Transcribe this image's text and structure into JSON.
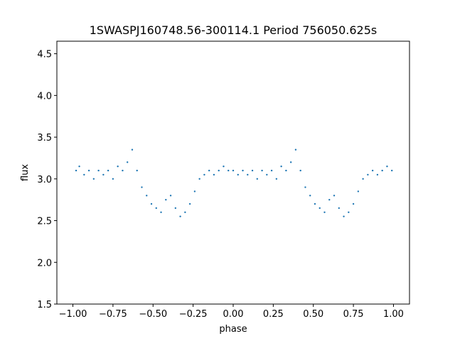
{
  "chart_data": {
    "type": "scatter",
    "title": "1SWASPJ160748.56-300114.1 Period 756050.625s",
    "xlabel": "phase",
    "ylabel": "flux",
    "xlim": [
      -1.1,
      1.1
    ],
    "ylim": [
      1.5,
      4.65
    ],
    "xticks": [
      -1.0,
      -0.75,
      -0.5,
      -0.25,
      0.0,
      0.25,
      0.5,
      0.75,
      1.0
    ],
    "xtick_labels": [
      "−1.00",
      "−0.75",
      "−0.50",
      "−0.25",
      "0.00",
      "0.25",
      "0.50",
      "0.75",
      "1.00"
    ],
    "yticks": [
      1.5,
      2.0,
      2.5,
      3.0,
      3.5,
      4.0,
      4.5
    ],
    "ytick_labels": [
      "1.5",
      "2.0",
      "2.5",
      "3.0",
      "3.5",
      "4.0",
      "4.5"
    ],
    "grid": false,
    "marker_color": "#1f77b4",
    "series": [
      {
        "x": [
          -0.98,
          -0.96,
          -0.93,
          -0.9,
          -0.87,
          -0.84,
          -0.81,
          -0.78,
          -0.75,
          -0.72,
          -0.69,
          -0.66,
          -0.63,
          -0.6,
          -0.57,
          -0.54,
          -0.51,
          -0.48,
          -0.45,
          -0.42,
          -0.39,
          -0.36,
          -0.33,
          -0.3,
          -0.27,
          -0.24,
          -0.21,
          -0.18,
          -0.15,
          -0.12,
          -0.09,
          -0.06,
          -0.03,
          0.0,
          0.03,
          0.06,
          0.09,
          0.12,
          0.15,
          0.18,
          0.21,
          0.24,
          0.27,
          0.3,
          0.33,
          0.36,
          0.39,
          0.42,
          0.45,
          0.48,
          0.51,
          0.54,
          0.57,
          0.6,
          0.63,
          0.66,
          0.69,
          0.72,
          0.75,
          0.78,
          0.81,
          0.84,
          0.87,
          0.9,
          0.93,
          0.96,
          0.99
        ],
        "y": [
          3.1,
          3.15,
          3.05,
          3.1,
          3.0,
          3.1,
          3.05,
          3.1,
          3.0,
          3.15,
          3.1,
          3.2,
          3.35,
          3.1,
          2.9,
          2.8,
          2.7,
          2.65,
          2.6,
          2.75,
          2.8,
          2.65,
          2.55,
          2.6,
          2.7,
          2.85,
          3.0,
          3.05,
          3.1,
          3.05,
          3.1,
          3.15,
          3.1,
          3.1,
          3.05,
          3.1,
          3.05,
          3.1,
          3.0,
          3.1,
          3.05,
          3.1,
          3.0,
          3.15,
          3.1,
          3.2,
          3.35,
          3.1,
          2.9,
          2.8,
          2.7,
          2.65,
          2.6,
          2.75,
          2.8,
          2.65,
          2.55,
          2.6,
          2.7,
          2.85,
          3.0,
          3.05,
          3.1,
          3.05,
          3.1,
          3.15,
          3.1
        ]
      }
    ]
  }
}
